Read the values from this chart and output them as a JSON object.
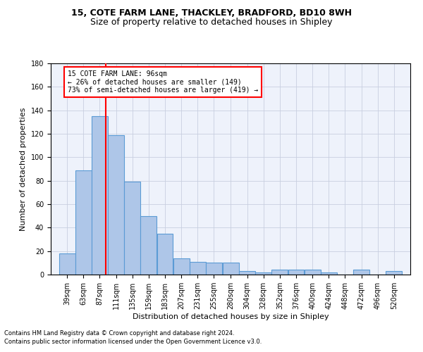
{
  "title1": "15, COTE FARM LANE, THACKLEY, BRADFORD, BD10 8WH",
  "title2": "Size of property relative to detached houses in Shipley",
  "xlabel": "Distribution of detached houses by size in Shipley",
  "ylabel": "Number of detached properties",
  "footnote1": "Contains HM Land Registry data © Crown copyright and database right 2024.",
  "footnote2": "Contains public sector information licensed under the Open Government Licence v3.0.",
  "categories": [
    "39sqm",
    "63sqm",
    "87sqm",
    "111sqm",
    "135sqm",
    "159sqm",
    "183sqm",
    "207sqm",
    "231sqm",
    "255sqm",
    "280sqm",
    "304sqm",
    "328sqm",
    "352sqm",
    "376sqm",
    "400sqm",
    "424sqm",
    "448sqm",
    "472sqm",
    "496sqm",
    "520sqm"
  ],
  "values": [
    18,
    89,
    135,
    119,
    79,
    50,
    35,
    14,
    11,
    10,
    10,
    3,
    2,
    4,
    4,
    4,
    2,
    0,
    4,
    0,
    3
  ],
  "bar_color": "#aec6e8",
  "bar_edge_color": "#5b9bd5",
  "vline_x": 96,
  "vline_color": "red",
  "annotation_line1": "15 COTE FARM LANE: 96sqm",
  "annotation_line2": "← 26% of detached houses are smaller (149)",
  "annotation_line3": "73% of semi-detached houses are larger (419) →",
  "annotation_box_color": "white",
  "annotation_box_edge": "red",
  "ylim": [
    0,
    180
  ],
  "yticks": [
    0,
    20,
    40,
    60,
    80,
    100,
    120,
    140,
    160,
    180
  ],
  "bg_color": "#eef2fb",
  "grid_color": "#c8cfe0",
  "title1_fontsize": 9,
  "title2_fontsize": 9,
  "tick_fontsize": 7,
  "ylabel_fontsize": 8,
  "xlabel_fontsize": 8,
  "footnote_fontsize": 6,
  "annot_fontsize": 7
}
